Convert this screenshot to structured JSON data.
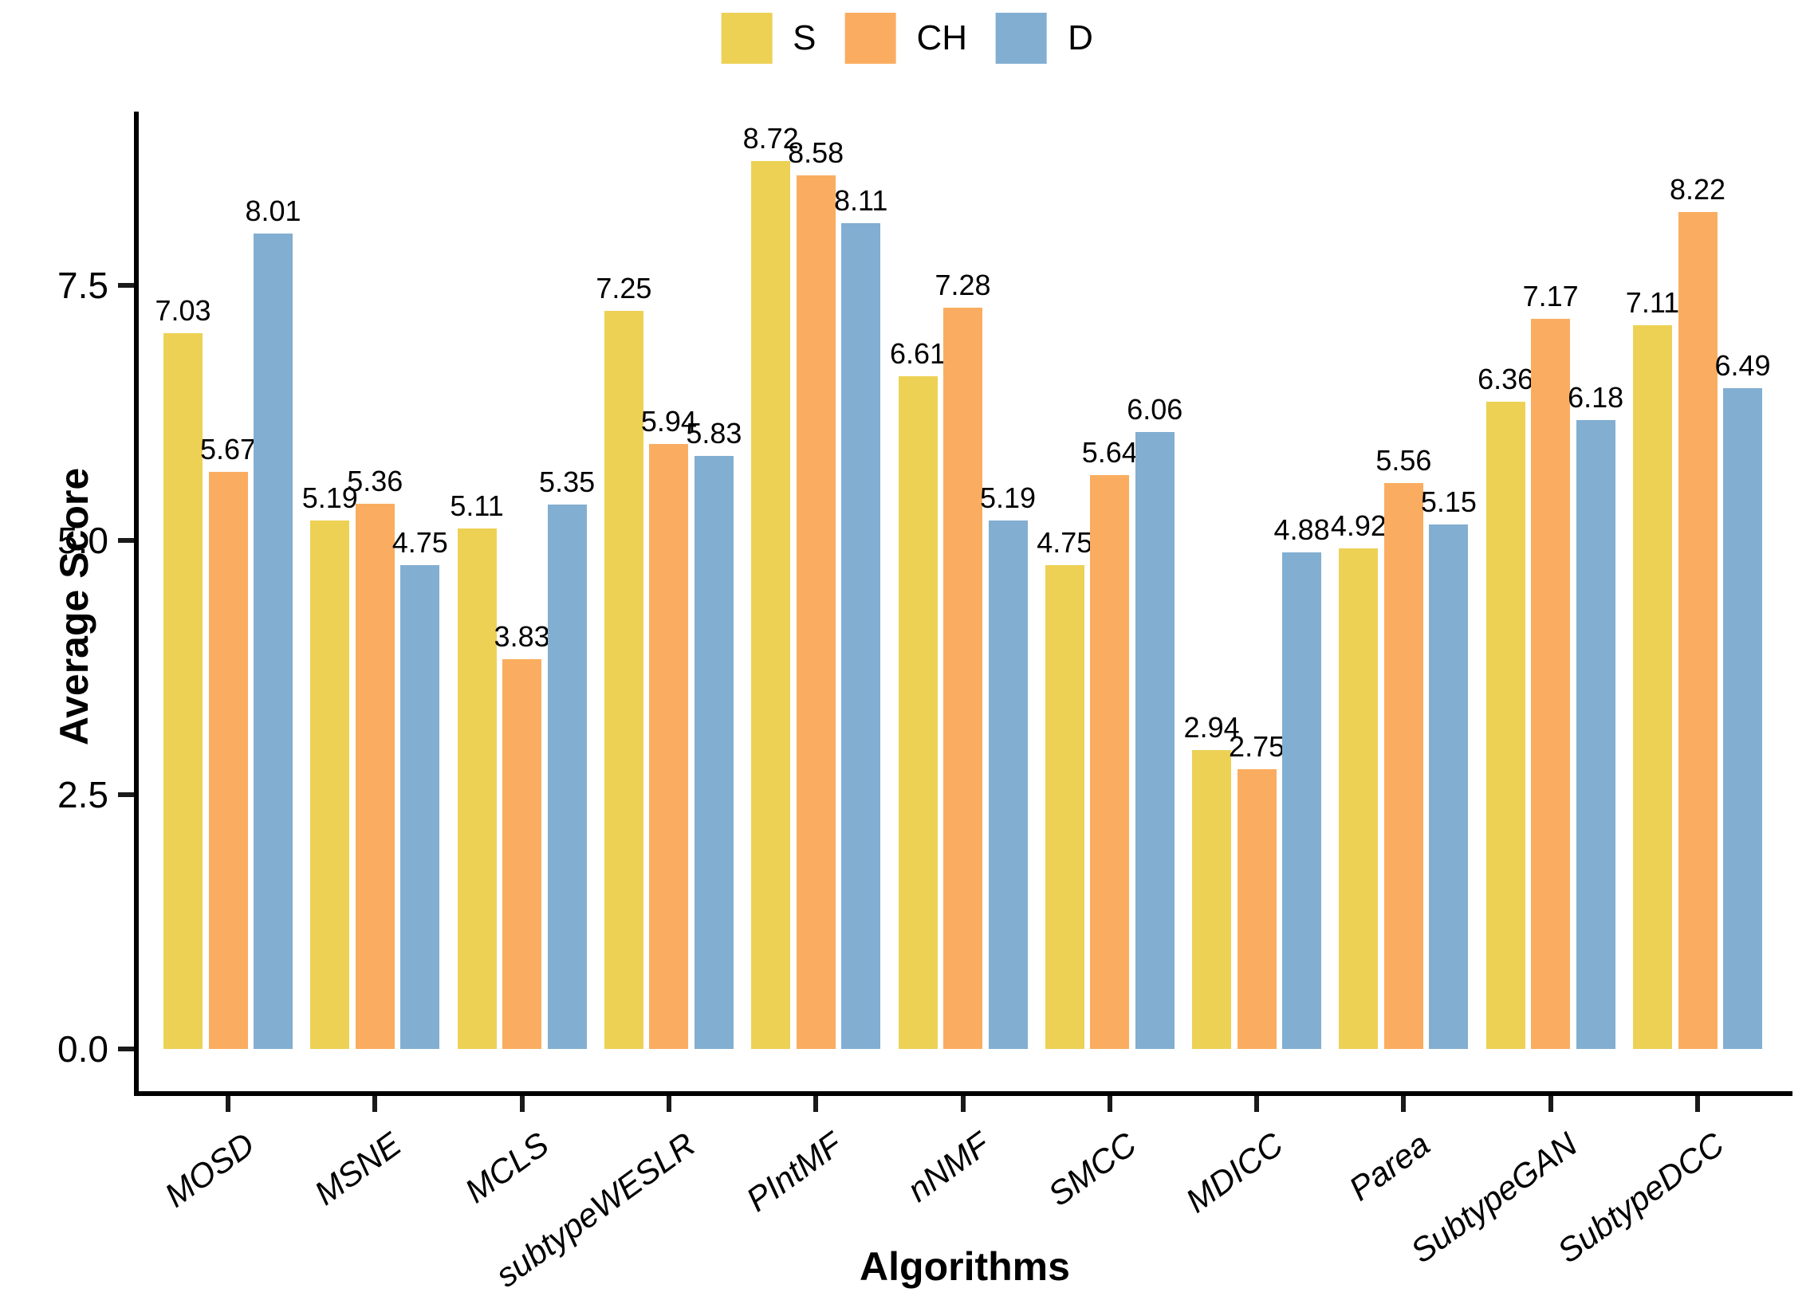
{
  "chart_data": {
    "type": "bar",
    "title": "",
    "xlabel": "Algorithms",
    "ylabel": "Average Score",
    "categories": [
      "MOSD",
      "MSNE",
      "MCLS",
      "subtypeWESLR",
      "PIntMF",
      "nNMF",
      "SMCC",
      "MDICC",
      "Parea",
      "SubtypeGAN",
      "SubtypeDCC"
    ],
    "series": [
      {
        "name": "S",
        "color": "#EDD155",
        "values": [
          7.03,
          5.19,
          5.11,
          7.25,
          8.72,
          6.61,
          4.75,
          2.94,
          4.92,
          6.36,
          7.11
        ]
      },
      {
        "name": "CH",
        "color": "#FAAD60",
        "values": [
          5.67,
          5.36,
          3.83,
          5.94,
          8.58,
          7.28,
          5.64,
          2.75,
          5.56,
          7.17,
          8.22
        ]
      },
      {
        "name": "D",
        "color": "#82AED1",
        "values": [
          8.01,
          4.75,
          5.35,
          5.83,
          8.11,
          5.19,
          6.06,
          4.88,
          5.15,
          6.18,
          6.49
        ]
      }
    ],
    "value_label_decimals": 2,
    "y_ticks": [
      {
        "value": 0.0,
        "label": "0.0"
      },
      {
        "value": 2.5,
        "label": "2.5"
      },
      {
        "value": 5.0,
        "label": "5.0"
      },
      {
        "value": 7.5,
        "label": "7.5"
      }
    ],
    "ylim": [
      0,
      9.2
    ],
    "grid": "off",
    "legend_position": "top-center",
    "background_color": "#FFFFFF",
    "axis_color": "#000000"
  }
}
